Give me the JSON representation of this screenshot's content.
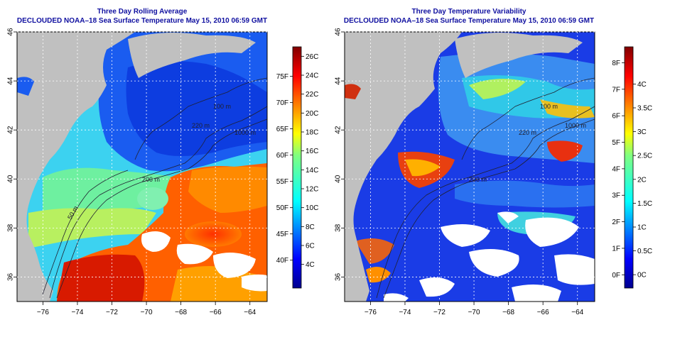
{
  "panels": [
    {
      "title1": "Three Day Rolling Average",
      "title2": "DECLOUDED NOAA–18 Sea Surface Temperature May 15, 2010 06:59 GMT",
      "colorbar_left_labels": [
        "75F",
        "70F",
        "65F",
        "60F",
        "55F",
        "50F",
        "45F",
        "40F"
      ],
      "colorbar_right_labels": [
        "26C",
        "24C",
        "22C",
        "20C",
        "18C",
        "16C",
        "14C",
        "12C",
        "10C",
        "8C",
        "6C",
        "4C"
      ]
    },
    {
      "title1": "Three Day Temperature Variability",
      "title2": "DECLOUDED NOAA–18 Sea Surface Temperature May 15, 2010 06:59 GMT",
      "colorbar_left_labels": [
        "8F",
        "7F",
        "6F",
        "5F",
        "4F",
        "3F",
        "2F",
        "1F",
        "0F"
      ],
      "colorbar_right_labels": [
        "4C",
        "3.5C",
        "3C",
        "2.5C",
        "2C",
        "1.5C",
        "1C",
        "0.5C",
        "0C"
      ]
    }
  ],
  "x_ticks": [
    "−76",
    "−74",
    "−72",
    "−70",
    "−68",
    "−66",
    "−64"
  ],
  "y_ticks": [
    "46",
    "44",
    "42",
    "40",
    "38",
    "36"
  ],
  "contour_labels": [
    "100 m",
    "1000 m",
    "220 m",
    "200 m",
    "50 m"
  ],
  "colors": {
    "title": "#1010a0",
    "land": "#c0c0c0",
    "missing": "#ffffff"
  }
}
